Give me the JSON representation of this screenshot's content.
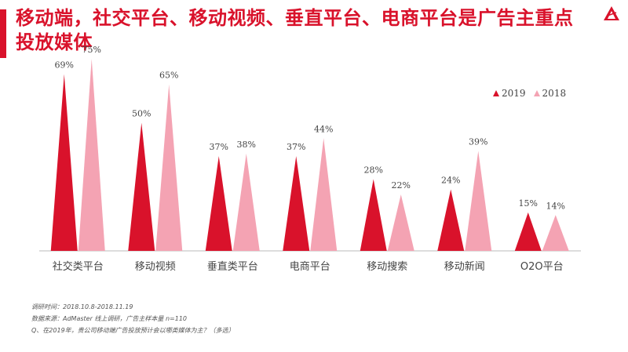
{
  "slide": {
    "title": "移动端，社交平台、移动视频、垂直平台、电商平台是广告主重点投放媒体",
    "accent_color": "#d9122b",
    "logo_icon": "red-triangle-logo"
  },
  "chart_data": {
    "type": "bar",
    "style": "triangle-peaks",
    "categories": [
      "社交类平台",
      "移动视频",
      "垂直类平台",
      "电商平台",
      "移动搜索",
      "移动新闻",
      "O2O平台"
    ],
    "series": [
      {
        "name": "2019",
        "values": [
          69,
          50,
          37,
          37,
          28,
          24,
          15
        ],
        "labels": [
          "69%",
          "50%",
          "37%",
          "37%",
          "28%",
          "24%",
          "15%"
        ],
        "color": "#d9122b"
      },
      {
        "name": "2018",
        "values": [
          75,
          65,
          38,
          44,
          22,
          39,
          14
        ],
        "labels": [
          "75%",
          "65%",
          "38%",
          "44%",
          "22%",
          "39%",
          "14%"
        ],
        "color": "#f4a3b3"
      }
    ],
    "ylim": [
      0,
      100
    ],
    "grid": false,
    "legend_position": "top-right"
  },
  "footnotes": [
    "调研时间：2018.10.8-2018.11.19",
    "数据来源：AdMaster 线上调研，广告主样本量 n=110",
    "Q、在2019年，贵公司移动端广告投放预计会以哪类媒体为主？（多选）"
  ]
}
